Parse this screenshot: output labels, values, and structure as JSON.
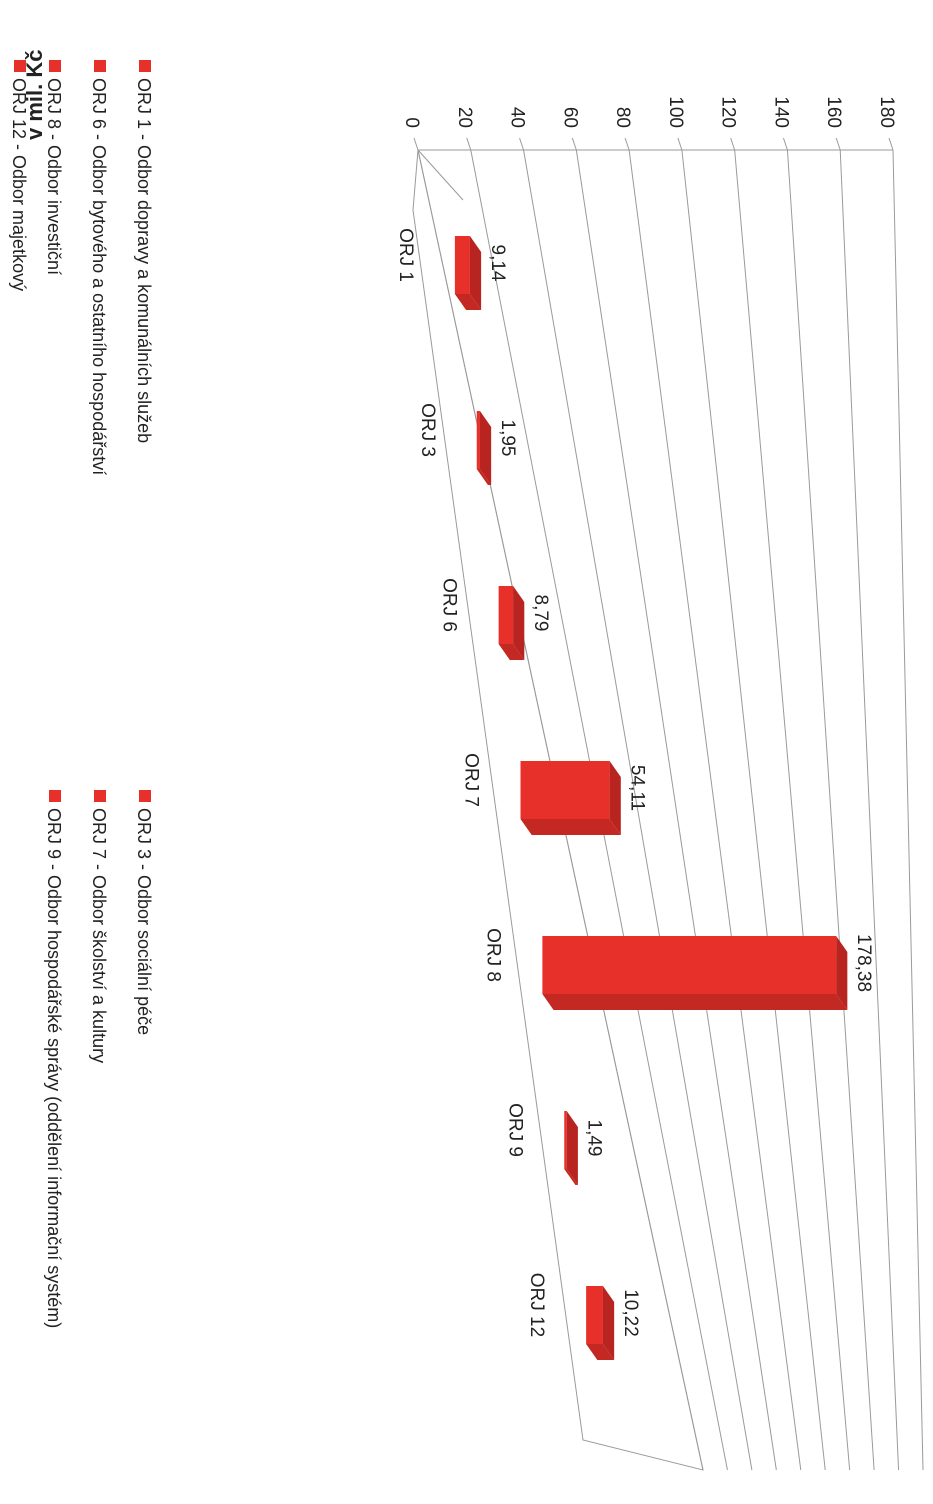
{
  "chart_data": {
    "type": "bar",
    "ylabel": "v mil. Kč",
    "ylim": [
      0,
      180
    ],
    "yticks": [
      0,
      20,
      40,
      60,
      80,
      100,
      120,
      140,
      160,
      180
    ],
    "categories": [
      "ORJ 1",
      "ORJ 3",
      "ORJ 6",
      "ORJ 7",
      "ORJ 8",
      "ORJ 9",
      "ORJ 12"
    ],
    "series": [
      {
        "values": [
          9.14,
          1.95,
          8.79,
          54.11,
          178.38,
          1.49,
          10.22
        ],
        "value_labels": [
          "9,14",
          "1,95",
          "8,79",
          "54,11",
          "178,38",
          "1,49",
          "10,22"
        ],
        "color": "#e8302a"
      }
    ],
    "legend": {
      "placement": "bottom",
      "items": [
        "ORJ 1 - Odbor dopravy a komunálních služeb",
        "ORJ 3 - Odbor sociální péče",
        "ORJ 6 - Odbor bytového a ostatního hospodářství",
        "ORJ 7 - Odbor školství a kultury",
        "ORJ 8 - Odbor investiční",
        "ORJ 9 - Odbor hospodářské správy (oddělení informační systém)",
        "ORJ 12 - Odbor majetkový"
      ]
    },
    "grid": true,
    "three_d": true,
    "orientation": "rotated-90-cw"
  }
}
